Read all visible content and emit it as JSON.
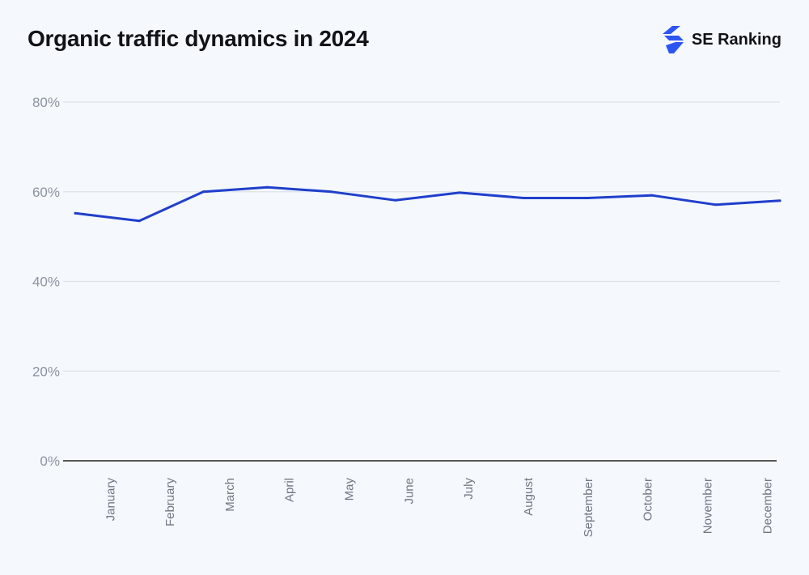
{
  "header": {
    "title": "Organic traffic dynamics in 2024",
    "brand": "SE Ranking"
  },
  "colors": {
    "line": "#1f3fcc",
    "brand_icon": "#2d55f0",
    "grid": "#dde3ea",
    "axis": "#222222"
  },
  "chart_data": {
    "type": "line",
    "title": "Organic traffic dynamics in 2024",
    "xlabel": "",
    "ylabel": "",
    "categories": [
      "January",
      "February",
      "March",
      "April",
      "May",
      "June",
      "July",
      "August",
      "September",
      "October",
      "November",
      "December"
    ],
    "series": [
      {
        "values": [
          55.2,
          53.5,
          60.0,
          61.0,
          60.0,
          58.1,
          59.8,
          58.6,
          58.6,
          59.2,
          57.1,
          58.0
        ]
      }
    ],
    "ylim": [
      0,
      80
    ],
    "yticks": [
      0,
      20,
      40,
      60,
      80
    ],
    "ytick_labels": [
      "0%",
      "20%",
      "40%",
      "60%",
      "80%"
    ],
    "grid": true,
    "legend": "none"
  }
}
